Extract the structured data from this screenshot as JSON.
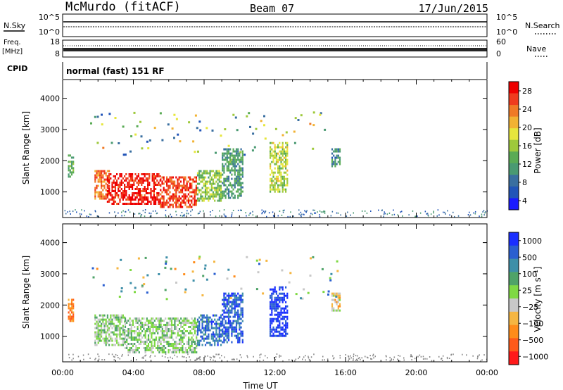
{
  "header": {
    "station": "McMurdo (fitACF)",
    "beam": "Beam 07",
    "date": "17/Jun/2015"
  },
  "panels": {
    "noise": {
      "left_label": "N.Sky",
      "right_label": "N.Search",
      "left_ticks": [
        "10^5",
        "10^0"
      ],
      "right_ticks": [
        "10^5",
        "10^0"
      ]
    },
    "freq": {
      "left_label_1": "Freq.",
      "left_label_2": "[MHz]",
      "right_label": "Nave",
      "left_ticks": [
        "18",
        "8"
      ],
      "right_ticks": [
        "60",
        "0"
      ]
    },
    "cpid": {
      "label": "CPID",
      "mode": "normal (fast) 151 RF"
    }
  },
  "axis_labels": {
    "ylabel": "Slant Range [km]",
    "xlabel": "Time UT"
  },
  "colorbars": {
    "power": {
      "label": "Power [dB]",
      "ticks": [
        "28",
        "24",
        "20",
        "16",
        "12",
        "8",
        "4"
      ]
    },
    "velocity": {
      "label": "Velocity [m s⁻¹]",
      "ticks": [
        "1000",
        "500",
        "100",
        "25",
        "−25",
        "−100",
        "−500",
        "−1000"
      ]
    }
  },
  "colors": {
    "power_scale": [
      "#1a1aff",
      "#2255b8",
      "#3a6fa0",
      "#4a9a72",
      "#5aab55",
      "#9ec93c",
      "#e6e63c",
      "#f2b233",
      "#f07a26",
      "#ef3b1e",
      "#ee0000"
    ],
    "velocity_scale": [
      "#ff1a1a",
      "#ff5a1a",
      "#ff8c1a",
      "#f5b642",
      "#c8c8c8",
      "#7fd944",
      "#4fa368",
      "#3e8fa8",
      "#2a5fd0",
      "#1a2fff"
    ],
    "ground_scatter": "#888888"
  },
  "chart_data": [
    {
      "type": "heatmap",
      "panel": "power",
      "xlabel": "Time UT",
      "ylabel": "Slant Range [km]",
      "x_ticks": [
        "00:00",
        "04:00",
        "08:00",
        "12:00",
        "16:00",
        "20:00",
        "00:00"
      ],
      "y_ticks": [
        1000,
        2000,
        3000,
        4000
      ],
      "xlim_hours": [
        0,
        24
      ],
      "ylim_km": [
        180,
        4600
      ],
      "colorbar": {
        "label": "Power [dB]",
        "range": [
          0,
          30
        ]
      },
      "echo_regions": [
        {
          "t0": 0.3,
          "t1": 0.6,
          "r0": 1500,
          "r1": 2200,
          "value": 12
        },
        {
          "t0": 1.8,
          "t1": 2.6,
          "r0": 800,
          "r1": 1700,
          "value": 24
        },
        {
          "t0": 2.5,
          "t1": 5.5,
          "r0": 600,
          "r1": 1600,
          "value": 28
        },
        {
          "t0": 5.5,
          "t1": 7.6,
          "r0": 500,
          "r1": 1500,
          "value": 26
        },
        {
          "t0": 7.6,
          "t1": 9.0,
          "r0": 700,
          "r1": 1700,
          "value": 14
        },
        {
          "t0": 9.0,
          "t1": 10.2,
          "r0": 800,
          "r1": 2400,
          "value": 10
        },
        {
          "t0": 11.7,
          "t1": 12.7,
          "r0": 1000,
          "r1": 2600,
          "value": 16
        },
        {
          "t0": 15.2,
          "t1": 15.7,
          "r0": 1800,
          "r1": 2400,
          "value": 8
        }
      ]
    },
    {
      "type": "heatmap",
      "panel": "velocity",
      "xlabel": "Time UT",
      "ylabel": "Slant Range [km]",
      "x_ticks": [
        "00:00",
        "04:00",
        "08:00",
        "12:00",
        "16:00",
        "20:00",
        "00:00"
      ],
      "y_ticks": [
        1000,
        2000,
        3000,
        4000
      ],
      "xlim_hours": [
        0,
        24
      ],
      "ylim_km": [
        180,
        4600
      ],
      "colorbar": {
        "label": "Velocity [m s⁻¹]",
        "range": [
          -1000,
          1000
        ]
      },
      "echo_regions": [
        {
          "t0": 0.3,
          "t1": 0.6,
          "r0": 1500,
          "r1": 2200,
          "value": -500
        },
        {
          "t0": 1.8,
          "t1": 3.5,
          "r0": 700,
          "r1": 1700,
          "value": 100
        },
        {
          "t0": 3.5,
          "t1": 7.6,
          "r0": 500,
          "r1": 1600,
          "value": 80
        },
        {
          "t0": 7.6,
          "t1": 9.0,
          "r0": 700,
          "r1": 1700,
          "value": 600
        },
        {
          "t0": 9.0,
          "t1": 10.2,
          "r0": 800,
          "r1": 2400,
          "value": 700
        },
        {
          "t0": 11.7,
          "t1": 12.7,
          "r0": 1000,
          "r1": 2600,
          "value": 900
        },
        {
          "t0": 15.2,
          "t1": 15.7,
          "r0": 1800,
          "r1": 2400,
          "value": -200
        }
      ]
    }
  ]
}
